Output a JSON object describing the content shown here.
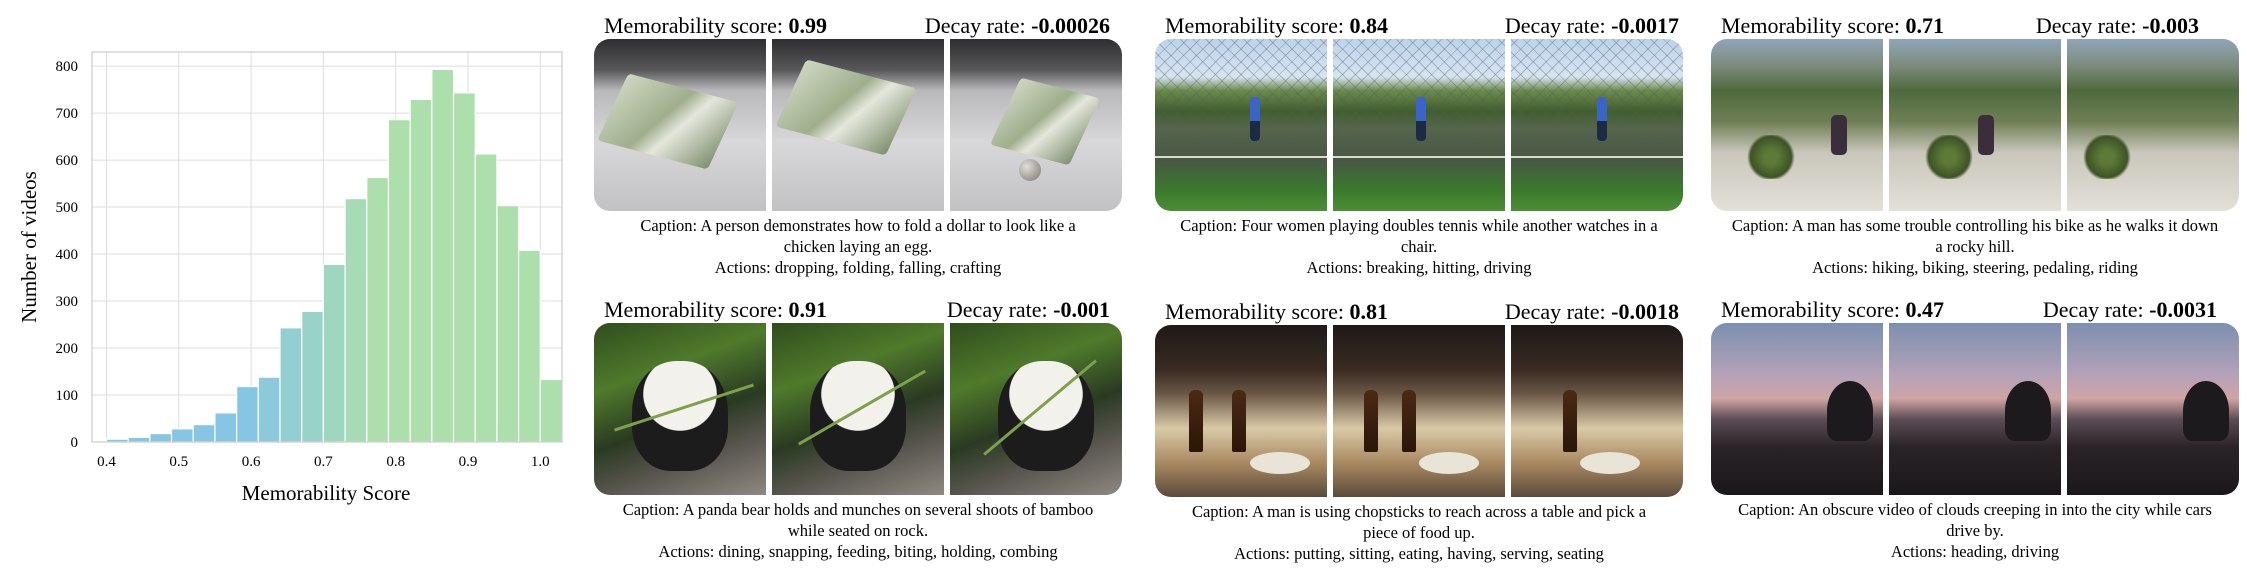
{
  "chart_data": {
    "type": "bar",
    "xlabel": "Memorability Score",
    "ylabel": "Number of videos",
    "xlim": [
      0.38,
      1.03
    ],
    "ylim": [
      0,
      830
    ],
    "xticks": [
      "0.4",
      "0.5",
      "0.6",
      "0.7",
      "0.8",
      "0.9",
      "1.0"
    ],
    "yticks": [
      "0",
      "100",
      "200",
      "300",
      "400",
      "500",
      "600",
      "700",
      "800"
    ],
    "grid": true,
    "bin_width": 0.03,
    "bins": [
      {
        "start": 0.4,
        "value": 6
      },
      {
        "start": 0.43,
        "value": 10
      },
      {
        "start": 0.46,
        "value": 18
      },
      {
        "start": 0.49,
        "value": 28
      },
      {
        "start": 0.52,
        "value": 37
      },
      {
        "start": 0.55,
        "value": 62
      },
      {
        "start": 0.58,
        "value": 118
      },
      {
        "start": 0.61,
        "value": 138
      },
      {
        "start": 0.64,
        "value": 243
      },
      {
        "start": 0.67,
        "value": 278
      },
      {
        "start": 0.7,
        "value": 378
      },
      {
        "start": 0.73,
        "value": 518
      },
      {
        "start": 0.76,
        "value": 563
      },
      {
        "start": 0.79,
        "value": 686
      },
      {
        "start": 0.82,
        "value": 729
      },
      {
        "start": 0.85,
        "value": 793
      },
      {
        "start": 0.88,
        "value": 743
      },
      {
        "start": 0.91,
        "value": 613
      },
      {
        "start": 0.94,
        "value": 503
      },
      {
        "start": 0.97,
        "value": 408
      },
      {
        "start": 1.0,
        "value": 133
      }
    ],
    "colors": {
      "low": "#86c5e4",
      "high": "#acdfac"
    }
  },
  "panels": [
    {
      "ms_label": "Memorability score:",
      "ms_value": "0.99",
      "dr_label": "Decay rate:",
      "dr_value": "-0.00026",
      "caption": "Caption: A person demonstrates how to fold a dollar to look like a chicken laying an egg.",
      "actions": "Actions: dropping, folding, falling, crafting"
    },
    {
      "ms_label": "Memorability score:",
      "ms_value": "0.84",
      "dr_label": "Decay rate:",
      "dr_value": "-0.0017",
      "caption": "Caption: Four women playing doubles tennis while another watches in a chair.",
      "actions": "Actions: breaking, hitting, driving"
    },
    {
      "ms_label": "Memorability score:",
      "ms_value": "0.71",
      "dr_label": "Decay rate:",
      "dr_value": "-0.003",
      "caption": "Caption: A man has some trouble controlling his bike as he walks it down a rocky hill.",
      "actions": "Actions: hiking, biking, steering, pedaling, riding"
    },
    {
      "ms_label": "Memorability score:",
      "ms_value": "0.91",
      "dr_label": "Decay rate:",
      "dr_value": "-0.001",
      "caption": "Caption:  A panda bear holds and munches on several shoots of bamboo while seated on rock.",
      "actions": "Actions: dining, snapping, feeding, biting, holding, combing"
    },
    {
      "ms_label": "Memorability score:",
      "ms_value": "0.81",
      "dr_label": "Decay rate:",
      "dr_value": "-0.0018",
      "caption": "Caption: A man is using chopsticks to reach across a table and pick a piece of food up.",
      "actions": "Actions: putting, sitting, eating, having, serving, seating"
    },
    {
      "ms_label": "Memorability score:",
      "ms_value": "0.47",
      "dr_label": "Decay rate:",
      "dr_value": "-0.0031",
      "caption": "Caption: An obscure video of clouds creeping in into the city while cars drive by.",
      "actions": "Actions: heading, driving"
    }
  ]
}
